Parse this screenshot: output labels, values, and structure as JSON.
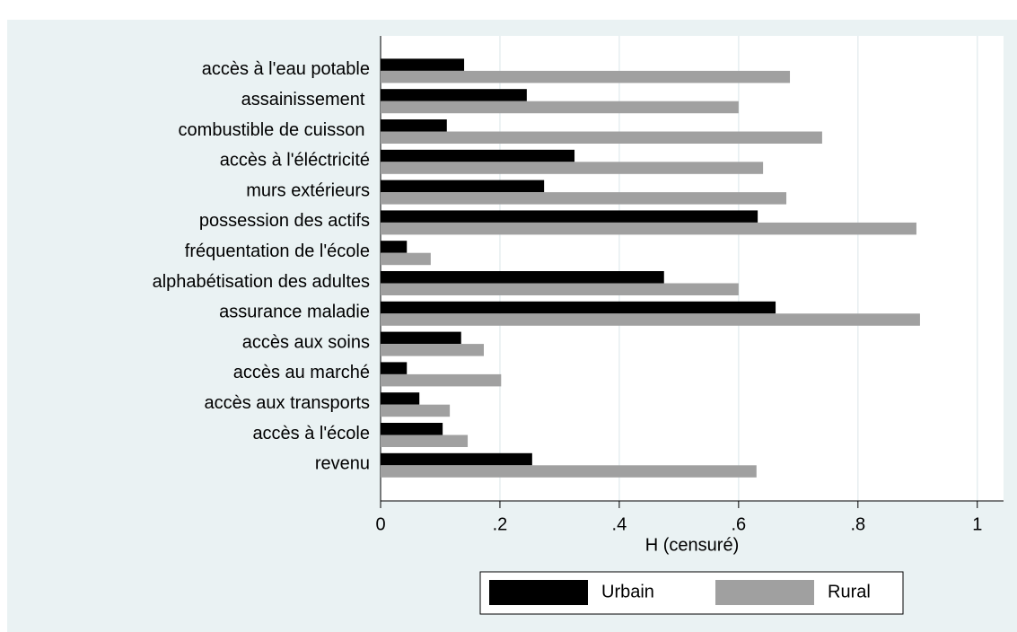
{
  "chart_data": {
    "type": "hbar",
    "categories": [
      "accès à l'eau potable",
      "assainissement ",
      "combustible de cuisson ",
      "accès à l'éléctricité",
      "murs extérieurs",
      "possession des actifs",
      "fréquentation de l'école",
      "alphabétisation des adultes",
      "assurance maladie",
      "accès aux soins",
      "accès au marché",
      "accès aux transports",
      "accès à l'école",
      "revenu"
    ],
    "series": [
      {
        "name": "Urbain",
        "color": "#000000",
        "values": [
          0.14,
          0.245,
          0.111,
          0.325,
          0.274,
          0.632,
          0.044,
          0.475,
          0.662,
          0.135,
          0.044,
          0.065,
          0.104,
          0.254
        ]
      },
      {
        "name": "Rural",
        "color": "#a0a0a0",
        "values": [
          0.686,
          0.6,
          0.74,
          0.641,
          0.68,
          0.898,
          0.084,
          0.6,
          0.904,
          0.173,
          0.202,
          0.116,
          0.146,
          0.63
        ]
      }
    ],
    "xlabel": "H (censuré)",
    "xlim": [
      0,
      1.044
    ],
    "xticks": [
      0,
      {
        "value": 0.2,
        "label": ".2"
      },
      {
        "value": 0.4,
        "label": ".4"
      },
      {
        "value": 0.6,
        "label": ".6"
      },
      {
        "value": 0.8,
        "label": ".8"
      },
      1
    ],
    "grid": true,
    "legend": "bottom"
  }
}
